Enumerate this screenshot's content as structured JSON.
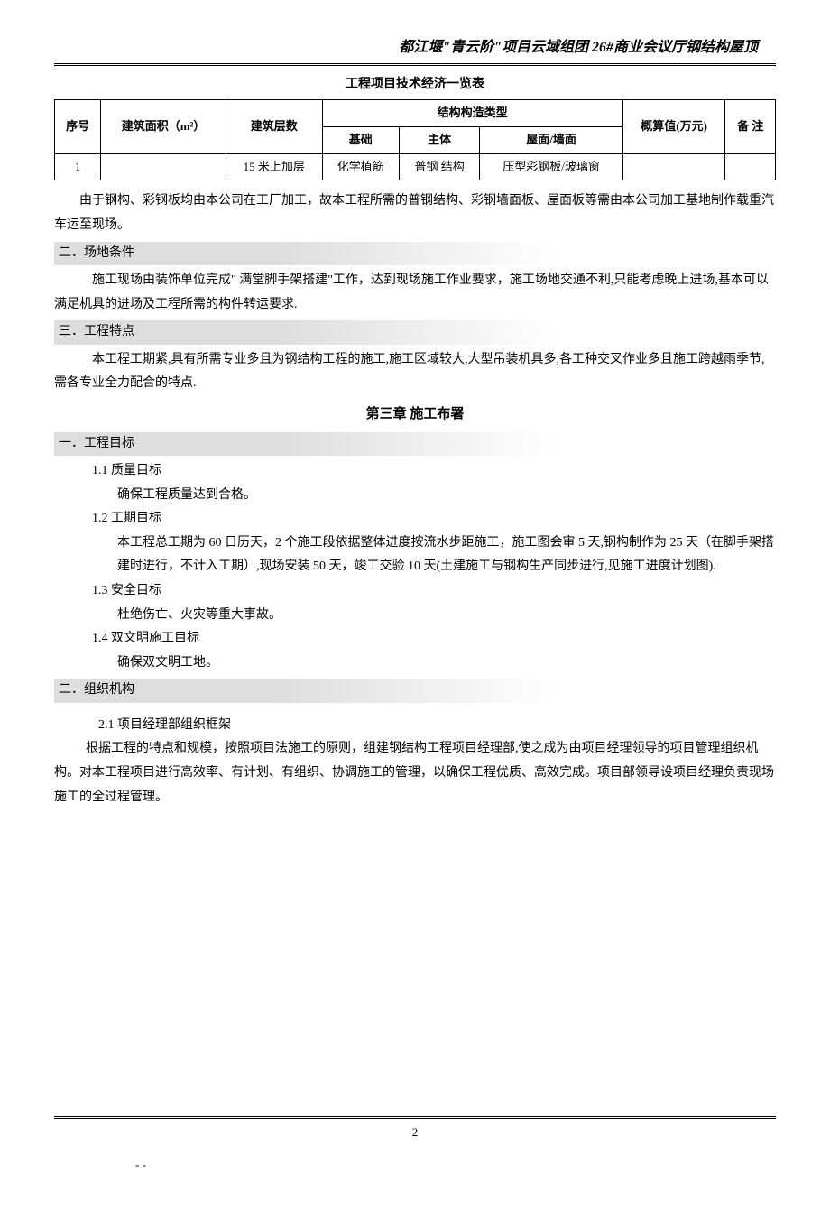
{
  "header": {
    "title": "都江堰\"青云阶\"项目云域组团 26#商业会议厅钢结构屋顶"
  },
  "table": {
    "title": "工程项目技术经济一览表",
    "columns": {
      "seq": "序号",
      "area": "建筑面积（m²）",
      "floors": "建筑层数",
      "structure": "结构构造类型",
      "foundation": "基础",
      "main": "主体",
      "roof_wall": "屋面/墙面",
      "estimate": "概算值(万元)",
      "remark": "备    注"
    },
    "rows": [
      {
        "seq": "1",
        "area": "",
        "floors": "15 米上加层",
        "foundation": "化学植筋",
        "main": "普钢 结构",
        "roof_wall": "压型彩钢板/玻璃窗",
        "estimate": "",
        "remark": ""
      }
    ]
  },
  "paragraphs": {
    "p1": "由于钢构、彩钢板均由本公司在工厂加工，故本工程所需的普钢结构、彩钢墙面板、屋面板等需由本公司加工基地制作载重汽车运至现场。"
  },
  "sections": {
    "s2": {
      "heading": "二．场地条件",
      "content": "施工现场由装饰单位完成\" 满堂脚手架搭建\"工作，达到现场施工作业要求，施工场地交通不利,只能考虑晚上进场,基本可以满足机具的进场及工程所需的构件转运要求."
    },
    "s3": {
      "heading": "三．工程特点",
      "content": "本工程工期紧,具有所需专业多且为钢结构工程的施工,施工区域较大,大型吊装机具多,各工种交叉作业多且施工跨越雨季节,需各专业全力配合的特点."
    }
  },
  "chapter3": {
    "title": "第三章    施工布署",
    "s1": {
      "heading": "一．工程目标",
      "items": {
        "i1": {
          "num": "1.1  质量目标",
          "content": "确保工程质量达到合格。"
        },
        "i2": {
          "num": "1.2  工期目标",
          "content": "本工程总工期为 60 日历天，2 个施工段依据整体进度按流水步距施工，施工图会审 5 天,钢构制作为 25 天（在脚手架搭建时进行，不计入工期）,现场安装 50 天，竣工交验 10 天(土建施工与钢构生产同步进行,见施工进度计划图)."
        },
        "i3": {
          "num": "1.3  安全目标",
          "content": "杜绝伤亡、火灾等重大事故。"
        },
        "i4": {
          "num": "1.4  双文明施工目标",
          "content": "确保双文明工地。"
        }
      }
    },
    "s2": {
      "heading": "二．组织机构",
      "i1": {
        "num": "2.1 项目经理部组织框架",
        "content": "根据工程的特点和规模，按照项目法施工的原则，组建钢结构工程项目经理部,使之成为由项目经理领导的项目管理组织机构。对本工程项目进行高效率、有计划、有组织、协调施工的管理，以确保工程优质、高效完成。项目部领导设项目经理负责现场施工的全过程管理。"
      }
    }
  },
  "footer": {
    "page": "2",
    "mark": "-  -"
  }
}
